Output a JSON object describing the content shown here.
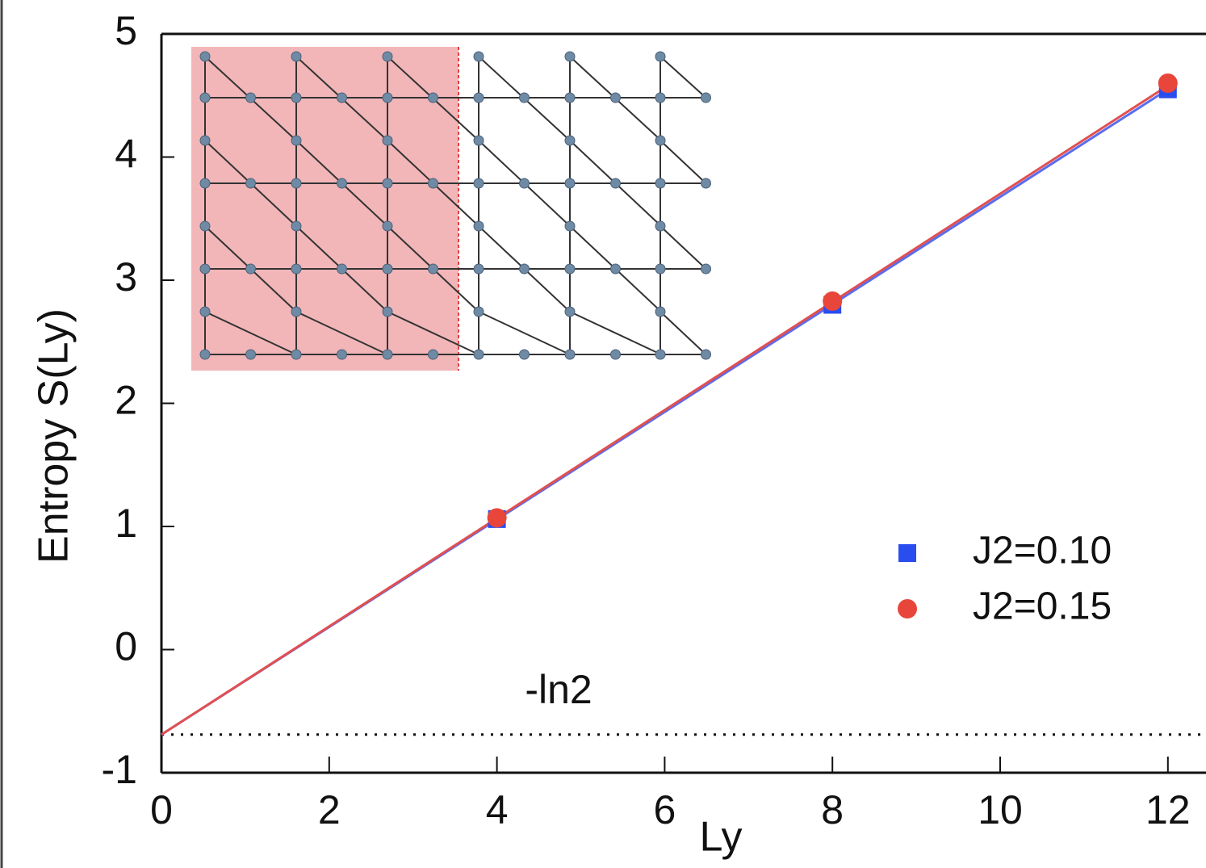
{
  "chart_data": {
    "type": "scatter",
    "xlabel": "Ly",
    "ylabel": "Entropy S(Ly)",
    "xlim": [
      0,
      12.45
    ],
    "ylim": [
      -1,
      5
    ],
    "xticks": [
      0,
      2,
      4,
      6,
      8,
      10,
      12
    ],
    "yticks": [
      -1,
      0,
      1,
      2,
      3,
      4,
      5
    ],
    "series": [
      {
        "name": "J2=0.10",
        "color": "#2a4df0",
        "marker": "square",
        "x": [
          4,
          8,
          12
        ],
        "values": [
          1.06,
          2.8,
          4.55
        ]
      },
      {
        "name": "J2=0.15",
        "color": "#e8463a",
        "marker": "circle",
        "x": [
          4,
          8,
          12
        ],
        "values": [
          1.07,
          2.83,
          4.6
        ]
      }
    ],
    "fit_lines": [
      {
        "color": "#5a6cf0",
        "x": [
          0,
          12
        ],
        "values": [
          -0.69,
          4.55
        ]
      },
      {
        "color": "#e05050",
        "x": [
          0,
          12
        ],
        "values": [
          -0.69,
          4.58
        ]
      }
    ],
    "reference_line": {
      "value": -0.69,
      "label": "-ln2"
    },
    "legend": "lower right"
  }
}
